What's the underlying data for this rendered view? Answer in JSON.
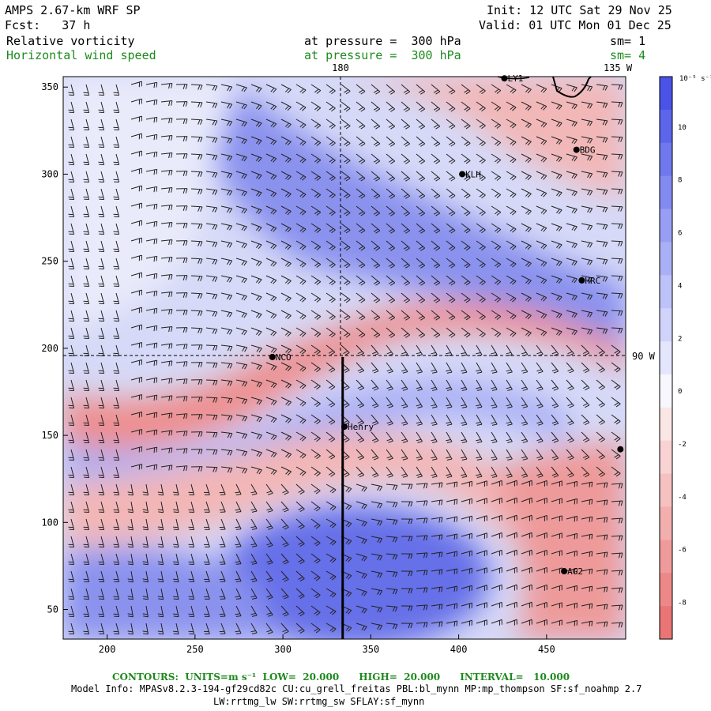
{
  "header": {
    "model": "AMPS 2.67-km WRF SP",
    "forecast": "Fcst:   37 h",
    "init": "Init: 12 UTC Sat 29 Nov 25",
    "valid": "Valid: 01 UTC Mon 01 Dec 25",
    "field1": {
      "name": "Relative vorticity",
      "pressure": "at pressure =  300 hPa",
      "smooth": "sm= 1"
    },
    "field2": {
      "name": "Horizontal wind speed",
      "pressure": "at pressure =  300 hPa",
      "smooth": "sm= 4"
    }
  },
  "map": {
    "x_ticks": [
      "200",
      "250",
      "300",
      "350",
      "400",
      "450"
    ],
    "x_tick_values": [
      200,
      250,
      300,
      350,
      400,
      450
    ],
    "y_ticks": [
      "50",
      "100",
      "150",
      "200",
      "250",
      "300",
      "350"
    ],
    "y_tick_values": [
      50,
      100,
      150,
      200,
      250,
      300,
      350
    ],
    "x_range": [
      175,
      495
    ],
    "y_range": [
      33,
      356
    ],
    "meridian_labels": {
      "top_180": "180",
      "top_135w": "135 W",
      "right_90w": "90 W"
    },
    "stations": [
      {
        "name": "LY1",
        "x": 426,
        "y": 355
      },
      {
        "name": "BDG",
        "x": 467,
        "y": 314
      },
      {
        "name": "KLH",
        "x": 402,
        "y": 300
      },
      {
        "name": "HRC",
        "x": 470,
        "y": 239
      },
      {
        "name": "NCO",
        "x": 294,
        "y": 195
      },
      {
        "name": "Henry",
        "x": 335,
        "y": 155
      },
      {
        "name": "AG2",
        "x": 460,
        "y": 72
      },
      {
        "name": "",
        "x": 492,
        "y": 142
      }
    ],
    "cross_section": {
      "x": 334,
      "y_start": 33,
      "y_end": 195
    }
  },
  "colorbar": {
    "unit": "10⁻⁵ s⁻¹",
    "labels": [
      "10",
      "8",
      "6",
      "4",
      "2",
      "0",
      "-2",
      "-4",
      "-6",
      "-8"
    ],
    "colors": [
      "#4a53e6",
      "#5d66ea",
      "#7078ed",
      "#838bf0",
      "#979ef3",
      "#aab0f5",
      "#bdc2f8",
      "#d0d4fa",
      "#e3e6fc",
      "#f7f7fd",
      "#fbe6e6",
      "#f9d3d3",
      "#f6c1c1",
      "#f3aeae",
      "#f09b9b",
      "#ec8888",
      "#e97575"
    ]
  },
  "footer": {
    "contours": "CONTOURS:  UNITS=m s⁻¹  LOW=  20.000      HIGH=  20.000      INTERVAL=   10.000",
    "model_info": "Model Info: MPASv8.2.3-194-gf29cd82c CU:cu_grell_freitas PBL:bl_mynn MP:mp_thompson SF:sf_noahmp 2.7",
    "model_info2": "LW:rrtmg_lw SW:rrtmg_sw SFLAY:sf_mynn"
  }
}
